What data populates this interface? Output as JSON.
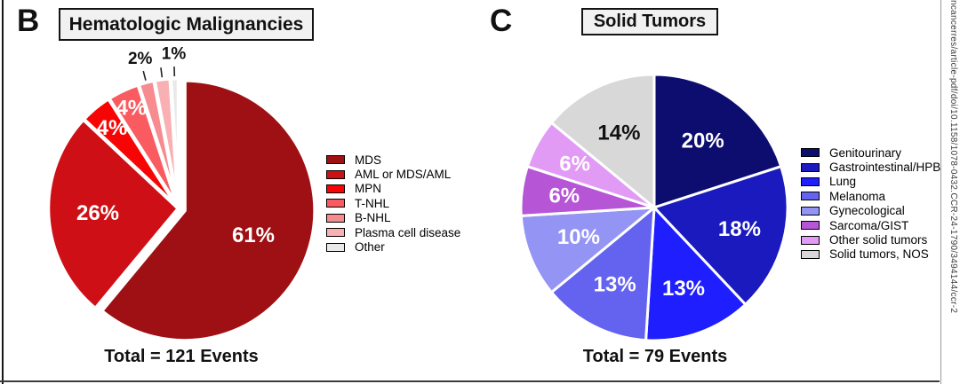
{
  "figure": {
    "panels": [
      {
        "letter": "B",
        "title": "Hematologic Malignancies",
        "total_label": "Total = 121 Events"
      },
      {
        "letter": "C",
        "title": "Solid Tumors",
        "total_label": "Total = 79 Events"
      }
    ],
    "watermark_text": "ncancerres/article-pdf/doi/10.1158/1078-0432.CCR-24-1790/3494144/ccr-2"
  },
  "chart_data": [
    {
      "type": "pie",
      "panel": "B",
      "title": "Hematologic Malignancies",
      "total_events": 121,
      "total_label": "Total = 121 Events",
      "start_angle_deg": 0,
      "direction": "clockwise",
      "legend_position": "right",
      "slices": [
        {
          "label": "MDS",
          "pct": 61,
          "display": "61%",
          "color": "#9E1013",
          "text_color": "#ffffff",
          "label_placement": "inside",
          "label_r": 0.56,
          "exploded": true
        },
        {
          "label": "AML or MDS/AML",
          "pct": 26,
          "display": "26%",
          "color": "#CE1016",
          "text_color": "#ffffff",
          "label_placement": "inside",
          "label_r": 0.62
        },
        {
          "label": "MPN",
          "pct": 4,
          "display": "4%",
          "color": "#F70505",
          "text_color": "#ffffff",
          "label_placement": "inside",
          "label_r": 0.8
        },
        {
          "label": "T-NHL",
          "pct": 4,
          "display": "4%",
          "color": "#F95B60",
          "text_color": "#ffffff",
          "label_placement": "inside",
          "label_r": 0.85
        },
        {
          "label": "B-NHL",
          "pct": 2,
          "display": "2%",
          "color": "#F68B90",
          "text_color": "#111111",
          "label_placement": "outside"
        },
        {
          "label": "Plasma cell disease",
          "pct": 2,
          "display": "",
          "color": "#F9B0B3",
          "text_color": "#111111",
          "label_placement": "outside"
        },
        {
          "label": "Other",
          "pct": 1,
          "display": "1%",
          "color": "#E9E9E9",
          "text_color": "#111111",
          "label_placement": "outside"
        }
      ]
    },
    {
      "type": "pie",
      "panel": "C",
      "title": "Solid Tumors",
      "total_events": 79,
      "total_label": "Total = 79 Events",
      "start_angle_deg": 0,
      "direction": "clockwise",
      "legend_position": "right",
      "slices": [
        {
          "label": "Genitourinary",
          "pct": 20,
          "display": "20%",
          "color": "#0D0D70",
          "text_color": "#ffffff",
          "label_placement": "inside",
          "label_r": 0.62
        },
        {
          "label": "Gastrointestinal/HPB",
          "pct": 18,
          "display": "18%",
          "color": "#1A1ABE",
          "text_color": "#ffffff",
          "label_placement": "inside",
          "label_r": 0.66
        },
        {
          "label": "Lung",
          "pct": 13,
          "display": "13%",
          "color": "#1E1EFE",
          "text_color": "#ffffff",
          "label_placement": "inside",
          "label_r": 0.65
        },
        {
          "label": "Melanoma",
          "pct": 13,
          "display": "13%",
          "color": "#6363F0",
          "text_color": "#ffffff",
          "label_placement": "inside",
          "label_r": 0.65
        },
        {
          "label": "Gynecological",
          "pct": 10,
          "display": "10%",
          "color": "#9494F5",
          "text_color": "#ffffff",
          "label_placement": "inside",
          "label_r": 0.61
        },
        {
          "label": "Sarcoma/GIST",
          "pct": 6,
          "display": "6%",
          "color": "#B655D5",
          "text_color": "#ffffff",
          "label_placement": "inside",
          "label_r": 0.68
        },
        {
          "label": "Other solid tumors",
          "pct": 6,
          "display": "6%",
          "color": "#E19BF5",
          "text_color": "#ffffff",
          "label_placement": "inside",
          "label_r": 0.68
        },
        {
          "label": "Solid tumors, NOS",
          "pct": 14,
          "display": "14%",
          "color": "#D8D8D8",
          "text_color": "#111111",
          "label_placement": "inside",
          "label_r": 0.62
        }
      ]
    }
  ]
}
